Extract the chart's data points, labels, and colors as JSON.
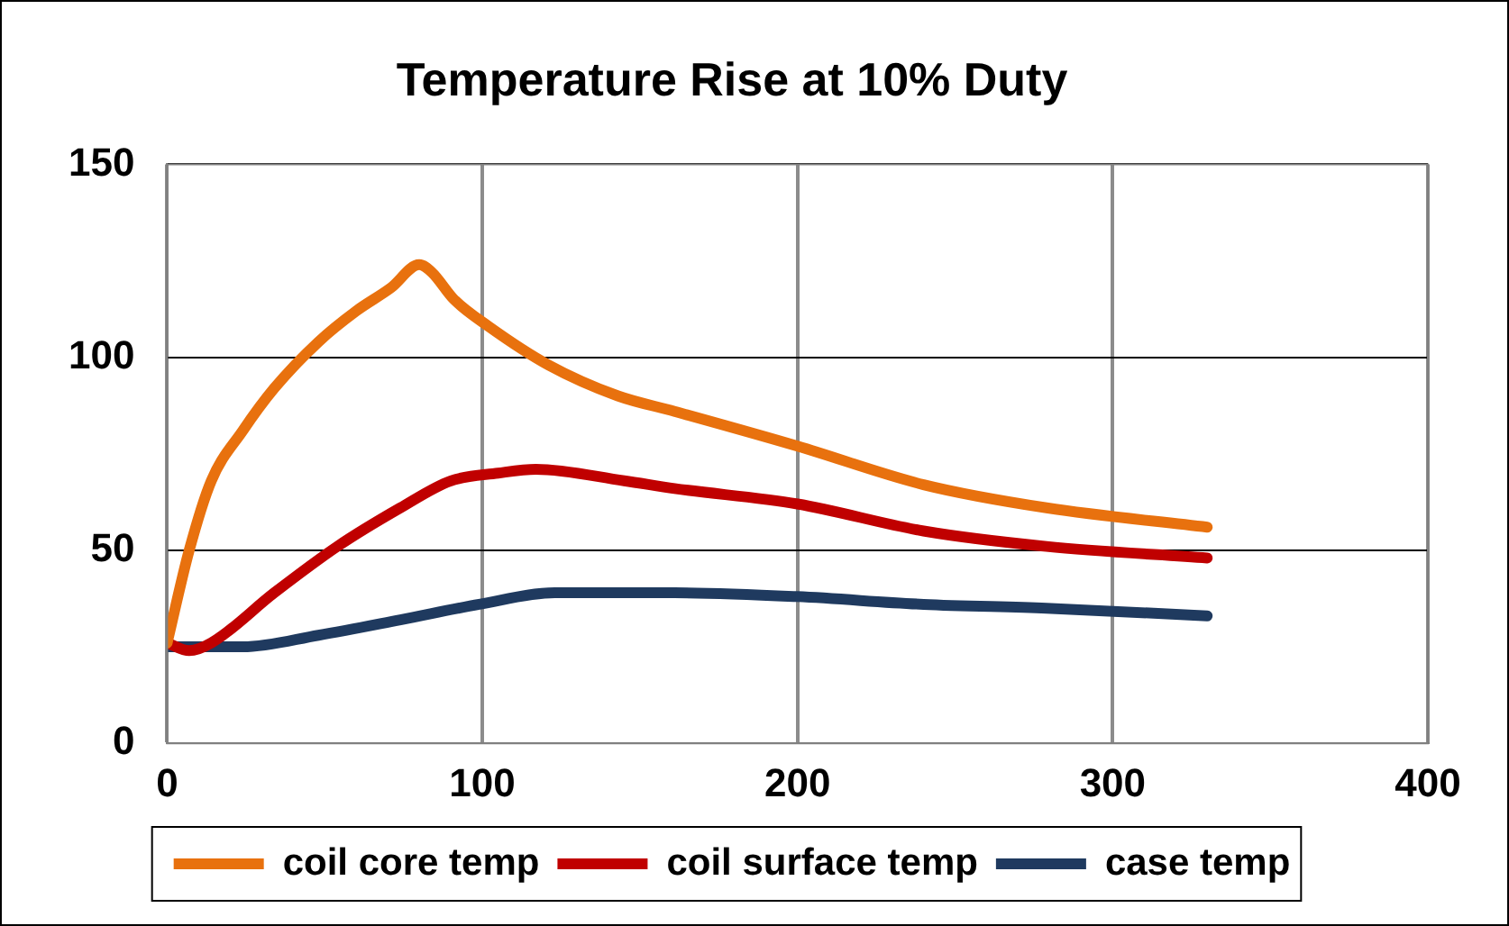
{
  "chart_data": {
    "type": "line",
    "title": "Temperature Rise at 10% Duty",
    "xlim": [
      0,
      400
    ],
    "xticks": [
      0,
      100,
      200,
      300,
      400
    ],
    "ylim": [
      0,
      150
    ],
    "yticks": [
      0,
      50,
      100,
      150
    ],
    "grid": true,
    "legend": "bottom",
    "marker": "none",
    "line_style": "solid",
    "series": [
      {
        "name": "coil core temp",
        "color": "#e8710e",
        "x": [
          0,
          7,
          14,
          24,
          34,
          48,
          60,
          71,
          80,
          84,
          91,
          102,
          121,
          143,
          161,
          200,
          240,
          279,
          330
        ],
        "values": [
          26,
          50,
          68,
          81,
          92,
          104,
          112,
          118,
          124,
          122,
          115,
          108,
          98,
          90,
          86,
          77,
          67,
          61,
          56
        ]
      },
      {
        "name": "coil surface temp",
        "color": "#c00000",
        "x": [
          0,
          7,
          14,
          34,
          54,
          74,
          90,
          105,
          117,
          145,
          161,
          200,
          240,
          279,
          330
        ],
        "values": [
          26,
          24,
          26,
          39,
          51,
          61,
          68,
          70,
          71,
          68,
          66,
          62,
          55,
          51,
          48
        ]
      },
      {
        "name": "case temp",
        "color": "#1f3a5f",
        "x": [
          0,
          24,
          48,
          74,
          99,
          123,
          153,
          161,
          200,
          240,
          279,
          330
        ],
        "values": [
          25,
          25,
          28,
          32,
          36,
          39,
          39,
          39,
          38,
          36,
          35,
          33
        ]
      }
    ]
  }
}
